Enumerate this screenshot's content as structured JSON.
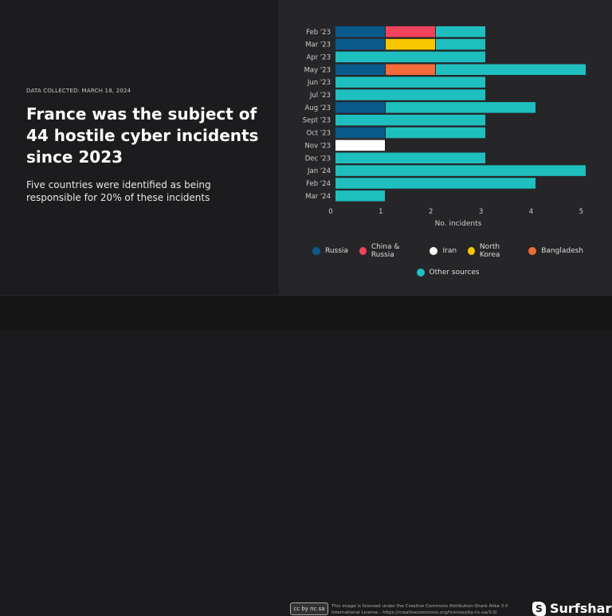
{
  "left": {
    "collected": "DATA COLLECTED: MARCH 18, 2024",
    "title": "France was the subject of 44 hostile cyber incidents since 2023",
    "subtitle": "Five countries were identified as being responsible for 20% of these incidents"
  },
  "chart_data": {
    "type": "bar",
    "orientation": "horizontal",
    "stacked": true,
    "categories": [
      "Feb '23",
      "Mar '23",
      "Apr '23",
      "May '23",
      "Jun '23",
      "Jul '23",
      "Aug '23",
      "Sept '23",
      "Oct '23",
      "Nov '23",
      "Dec '23",
      "Jan '24",
      "Feb '24",
      "Mar '24"
    ],
    "series": [
      {
        "name": "Russia",
        "color": "#0b5a8c",
        "values": [
          1,
          1,
          0,
          1,
          0,
          0,
          1,
          0,
          1,
          0,
          0,
          0,
          0,
          0
        ]
      },
      {
        "name": "China & Russia",
        "color": "#f2425c",
        "values": [
          1,
          0,
          0,
          0,
          0,
          0,
          0,
          0,
          0,
          0,
          0,
          0,
          0,
          0
        ]
      },
      {
        "name": "Iran",
        "color": "#ffffff",
        "values": [
          0,
          0,
          0,
          0,
          0,
          0,
          0,
          0,
          0,
          1,
          0,
          0,
          0,
          0
        ]
      },
      {
        "name": "North Korea",
        "color": "#f7c600",
        "values": [
          0,
          1,
          0,
          0,
          0,
          0,
          0,
          0,
          0,
          0,
          0,
          0,
          0,
          0
        ]
      },
      {
        "name": "Bangladesh",
        "color": "#f26b3a",
        "values": [
          0,
          0,
          0,
          1,
          0,
          0,
          0,
          0,
          0,
          0,
          0,
          0,
          0,
          0
        ]
      },
      {
        "name": "Other sources",
        "color": "#1fbfbf",
        "values": [
          1,
          1,
          3,
          3,
          3,
          3,
          3,
          3,
          2,
          0,
          3,
          5,
          4,
          1
        ]
      }
    ],
    "xlabel": "No. incidents",
    "xlim": [
      0,
      5
    ],
    "xticks": [
      0,
      1,
      2,
      3,
      4,
      5
    ],
    "grid": false,
    "legend": "bottom"
  },
  "footer": {
    "cc_badge": "cc by nc sa",
    "license": "This image is licensed under the Creative Commons Attribution-Share Alike 3.0 International License - https://creativecommons.org/licenses/by-nc-sa/3.0/",
    "brand": "Surfshark",
    "reg": "®"
  }
}
